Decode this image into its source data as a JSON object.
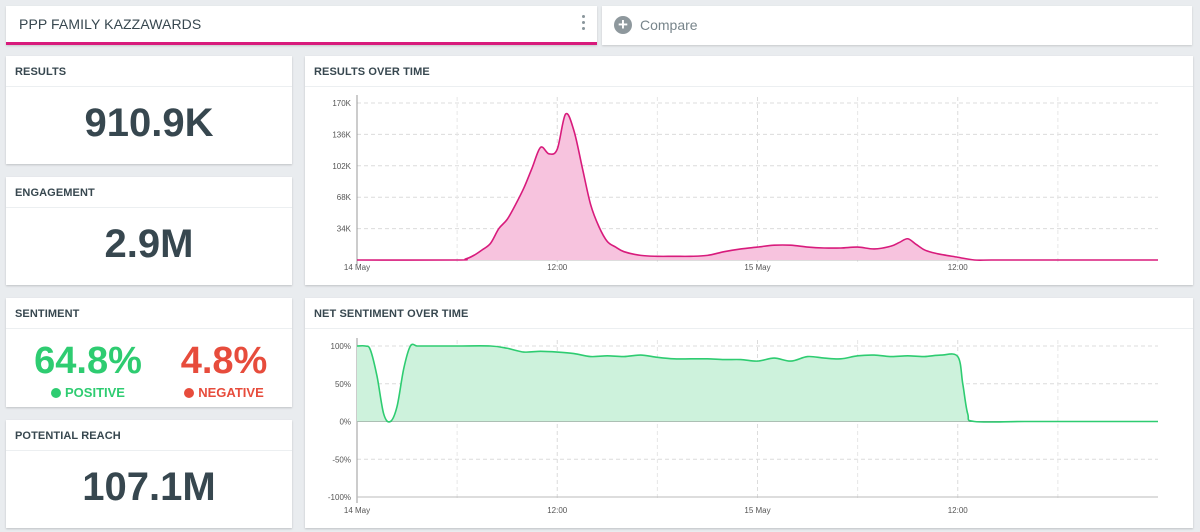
{
  "query": {
    "title": "PPP FAMILY KAZZAWARDS",
    "menu_icon": "kebab-menu-icon"
  },
  "compare": {
    "label": "Compare",
    "icon": "plus-circle-icon"
  },
  "cards": {
    "results": {
      "title": "RESULTS",
      "value": "910.9K"
    },
    "engagement": {
      "title": "ENGAGEMENT",
      "value": "2.9M"
    },
    "sentiment": {
      "title": "SENTIMENT",
      "positive_value": "64.8%",
      "positive_label": "POSITIVE",
      "negative_value": "4.8%",
      "negative_label": "NEGATIVE",
      "positive_color": "#2ecc71",
      "negative_color": "#e74c3c"
    },
    "reach": {
      "title": "POTENTIAL REACH",
      "value": "107.1M"
    }
  },
  "charts": {
    "results_title": "RESULTS OVER TIME",
    "sentiment_title": "NET SENTIMENT OVER TIME"
  },
  "chart_data": [
    {
      "type": "area",
      "title": "RESULTS OVER TIME",
      "color": "#d81b7c",
      "x_tick_labels": [
        "14 May",
        "12:00",
        "15 May",
        "12:00"
      ],
      "y_tick_labels": [
        "170K",
        "136K",
        "102K",
        "68K",
        "34K"
      ],
      "ylim": [
        0,
        170000
      ],
      "grid": true,
      "x_hours": [
        0,
        6,
        6.5,
        7,
        7.5,
        8,
        8.5,
        9,
        9.5,
        10,
        10.5,
        11,
        11.5,
        12,
        12.5,
        13,
        13.5,
        14,
        14.5,
        15,
        15.5,
        16,
        17,
        18,
        19,
        20,
        21,
        22,
        23,
        24,
        25,
        26,
        27,
        28,
        29,
        30,
        31,
        32,
        32.5,
        33,
        33.5,
        34,
        34.5,
        35,
        36,
        37,
        38,
        40,
        42,
        44,
        46,
        48
      ],
      "values": [
        0,
        0,
        1000,
        5000,
        11000,
        18000,
        34000,
        44000,
        60000,
        78000,
        100000,
        122000,
        115000,
        120000,
        158000,
        140000,
        100000,
        60000,
        36000,
        20000,
        14000,
        9000,
        5000,
        4000,
        4000,
        4000,
        5000,
        9000,
        12000,
        14000,
        16000,
        16000,
        14000,
        13000,
        13000,
        14000,
        12000,
        15000,
        19000,
        23000,
        17000,
        11000,
        8000,
        6000,
        3000,
        0,
        0,
        0,
        0,
        0,
        0,
        0
      ]
    },
    {
      "type": "area",
      "title": "NET SENTIMENT OVER TIME",
      "color": "#2ecc71",
      "x_tick_labels": [
        "14 May",
        "12:00",
        "15 May",
        "12:00"
      ],
      "y_tick_labels": [
        "100%",
        "50%",
        "0%",
        "-50%",
        "-100%"
      ],
      "ylim": [
        -100,
        100
      ],
      "grid": true,
      "x_hours": [
        0,
        0.5,
        0.8,
        1.2,
        1.6,
        2,
        2.4,
        2.8,
        3.2,
        3.6,
        4,
        6,
        8,
        9,
        10,
        11,
        12,
        13,
        14,
        15,
        16,
        17,
        18,
        19,
        20,
        21,
        22,
        23,
        24,
        25,
        26,
        27,
        28,
        29,
        30,
        31,
        32,
        33,
        34,
        35,
        36,
        36.3,
        36.6,
        37,
        40,
        44,
        48
      ],
      "values": [
        100,
        100,
        95,
        60,
        10,
        0,
        20,
        70,
        100,
        100,
        100,
        100,
        100,
        97,
        92,
        93,
        92,
        90,
        86,
        87,
        86,
        88,
        85,
        83,
        83,
        83,
        82,
        82,
        80,
        84,
        80,
        86,
        84,
        83,
        87,
        88,
        86,
        87,
        86,
        88,
        86,
        50,
        10,
        0,
        0,
        0,
        0
      ]
    }
  ]
}
